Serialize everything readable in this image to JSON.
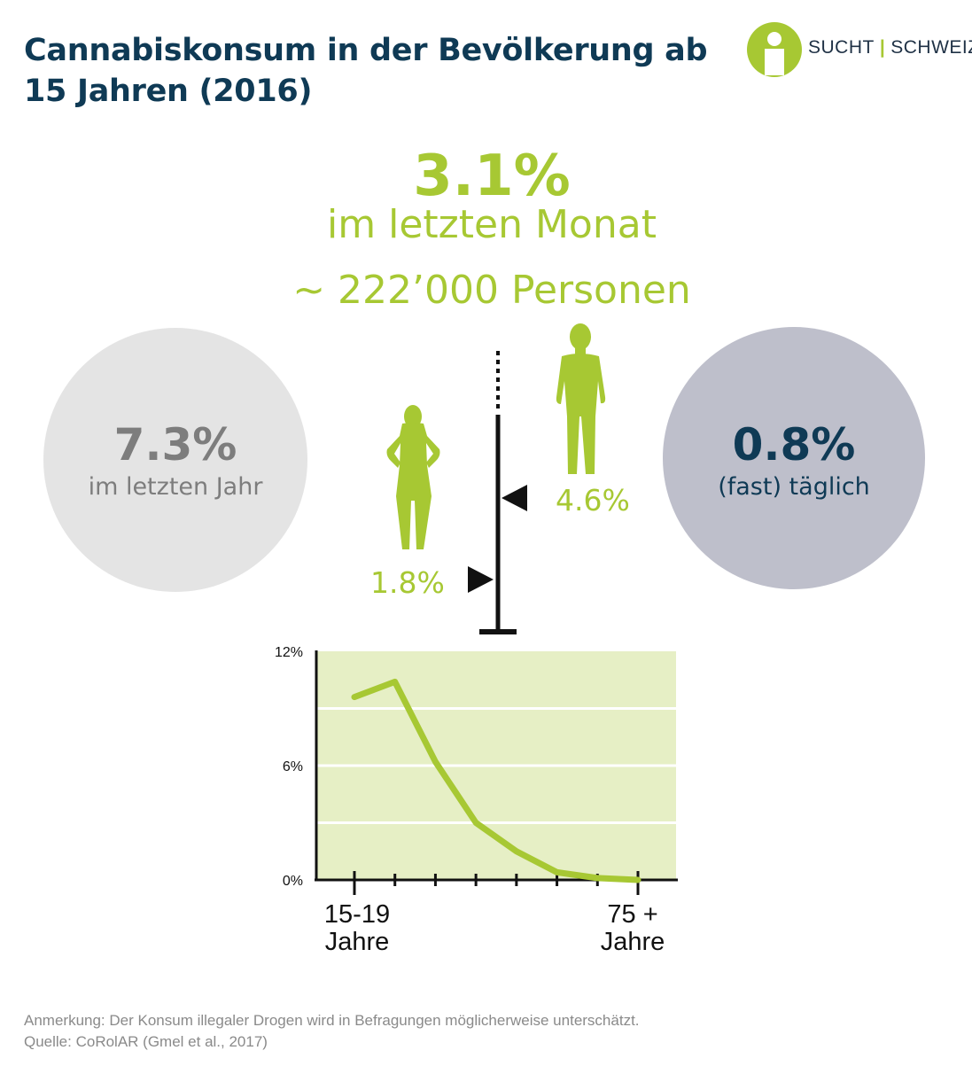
{
  "title": "Cannabiskonsum in der Bevölkerung ab 15 Jahren (2016)",
  "logo": {
    "left": "SUCHT",
    "separator": "|",
    "right": "SCHWEIZ"
  },
  "main_stat": {
    "value": "3.1%",
    "label": "im letzten Monat",
    "persons": "~ 222’000 Personen"
  },
  "left_circle": {
    "value": "7.3%",
    "label": "im letzten Jahr",
    "color": "#e4e4e4"
  },
  "right_circle": {
    "value": "0.8%",
    "label": "(fast) täglich",
    "color": "#bebfcb"
  },
  "gender": {
    "male": "4.6%",
    "female": "1.8%"
  },
  "colors": {
    "accent": "#a7c833",
    "dark": "#0f3a55",
    "chart_bg": "#e6efc5"
  },
  "chart_data": {
    "type": "line",
    "x_labels": [
      "15-19\nJahre",
      "75 +\nJahre"
    ],
    "y_ticks": [
      "12%",
      "6%",
      "0%"
    ],
    "ylim": [
      0,
      12
    ],
    "series": [
      {
        "values": [
          9.6,
          10.4,
          6.2,
          3.0,
          1.5,
          0.4,
          0.1,
          0.0
        ]
      }
    ],
    "grid": true
  },
  "note": {
    "line1": "Anmerkung: Der Konsum illegaler Drogen wird in Befragungen möglicherweise unterschätzt.",
    "line2": "Quelle: CoRolAR (Gmel et al., 2017)"
  }
}
